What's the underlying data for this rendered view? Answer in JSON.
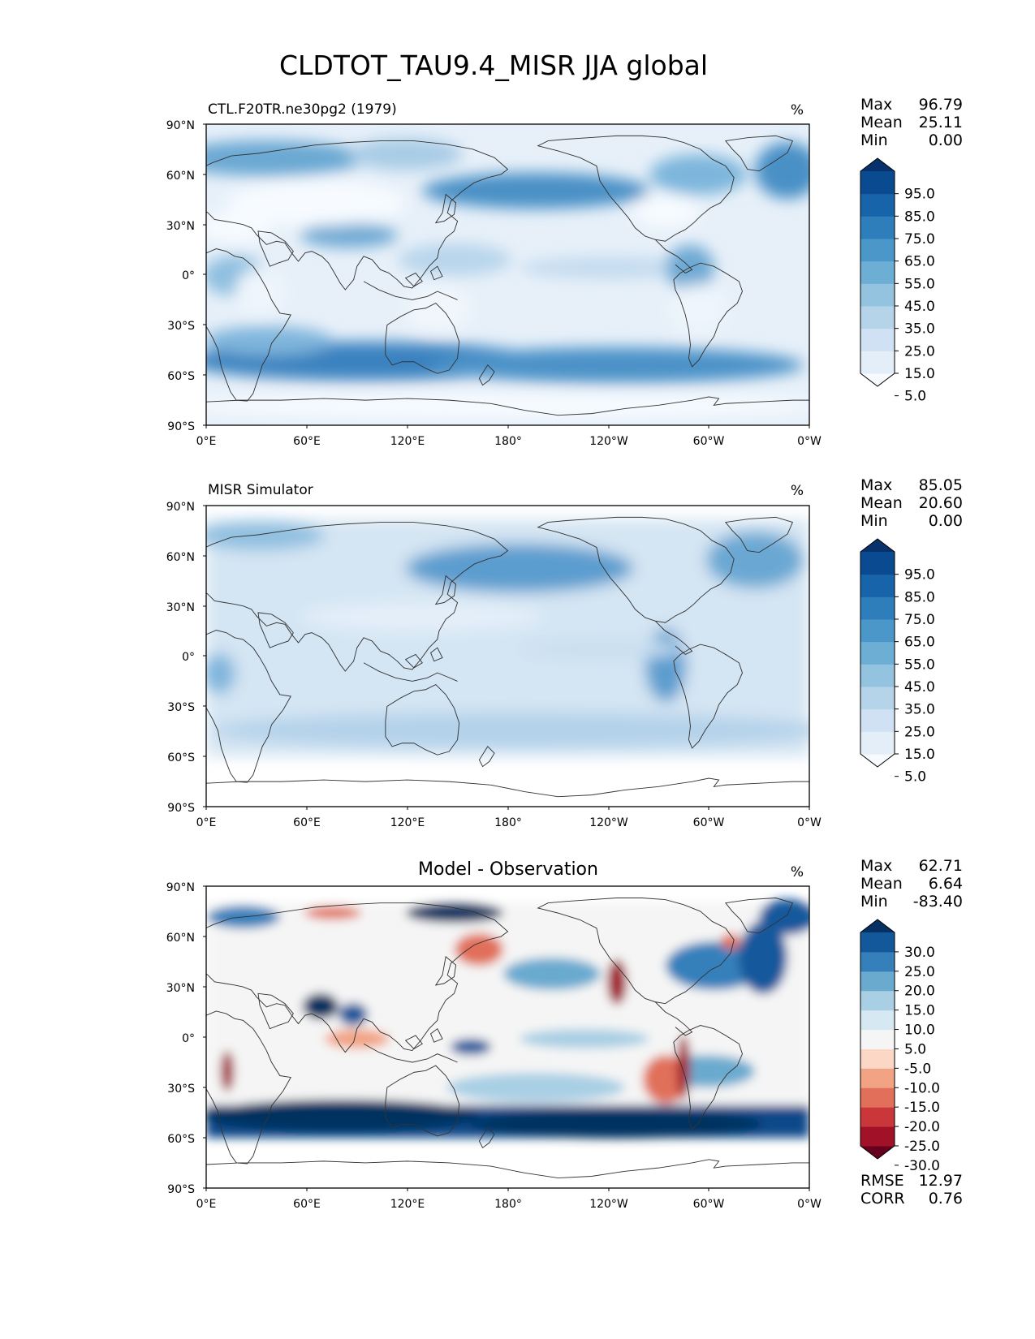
{
  "title": "CLDTOT_TAU9.4_MISR JJA global",
  "lat_ticks": [
    "90°N",
    "60°N",
    "30°N",
    "0°",
    "30°S",
    "60°S",
    "90°S"
  ],
  "lon_ticks": [
    "0°E",
    "60°E",
    "120°E",
    "180°",
    "120°W",
    "60°W",
    "0°W"
  ],
  "panels": [
    {
      "left_title": "CTL.F20TR.ne30pg2 (1979)",
      "center_title": "",
      "units": "%",
      "stats": [
        {
          "label": "Max",
          "value": "96.79"
        },
        {
          "label": "Mean",
          "value": "25.11"
        },
        {
          "label": "Min",
          "value": "0.00"
        }
      ],
      "colorbar": {
        "ticks": [
          "95.0",
          "85.0",
          "75.0",
          "65.0",
          "55.0",
          "45.0",
          "35.0",
          "25.0",
          "15.0",
          "5.0"
        ],
        "colors": [
          "#f7fbff",
          "#e3eef9",
          "#cfe1f2",
          "#b5d4e9",
          "#93c3df",
          "#6daed5",
          "#4b97c9",
          "#2f7ebc",
          "#1864aa",
          "#0a4a90",
          "#08306b"
        ]
      }
    },
    {
      "left_title": "MISR Simulator",
      "center_title": "",
      "units": "%",
      "stats": [
        {
          "label": "Max",
          "value": "85.05"
        },
        {
          "label": "Mean",
          "value": "20.60"
        },
        {
          "label": "Min",
          "value": "0.00"
        }
      ],
      "colorbar": {
        "ticks": [
          "95.0",
          "85.0",
          "75.0",
          "65.0",
          "55.0",
          "45.0",
          "35.0",
          "25.0",
          "15.0",
          "5.0"
        ],
        "colors": [
          "#f7fbff",
          "#e3eef9",
          "#cfe1f2",
          "#b5d4e9",
          "#93c3df",
          "#6daed5",
          "#4b97c9",
          "#2f7ebc",
          "#1864aa",
          "#0a4a90",
          "#08306b"
        ]
      }
    },
    {
      "left_title": "",
      "center_title": "Model - Observation",
      "units": "%",
      "stats": [
        {
          "label": "Max",
          "value": "62.71"
        },
        {
          "label": "Mean",
          "value": "6.64"
        },
        {
          "label": "Min",
          "value": "-83.40"
        }
      ],
      "colorbar": {
        "ticks": [
          "30.0",
          "25.0",
          "20.0",
          "15.0",
          "10.0",
          "5.0",
          "-5.0",
          "-10.0",
          "-15.0",
          "-20.0",
          "-25.0",
          "-30.0"
        ],
        "colors": [
          "#67001f",
          "#a11228",
          "#c9373a",
          "#e16f5a",
          "#f2a383",
          "#fcd7c5",
          "#f5f5f5",
          "#d6e8f2",
          "#a8cfe4",
          "#6aaacf",
          "#3580bb",
          "#14589c",
          "#053061"
        ]
      },
      "metrics": [
        {
          "label": "RMSE",
          "value": "12.97"
        },
        {
          "label": "CORR",
          "value": "0.76"
        }
      ]
    }
  ]
}
